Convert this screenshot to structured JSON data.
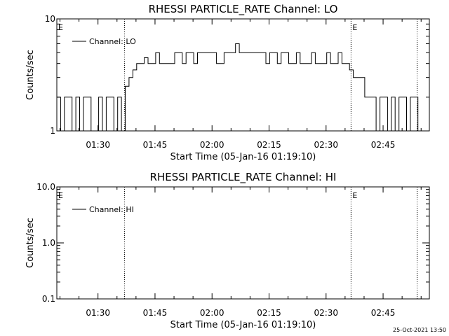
{
  "footer": {
    "timestamp": "25-Oct-2021 13:50"
  },
  "chart_data": [
    {
      "type": "line",
      "title": "RHESSI PARTICLE_RATE Channel: LO",
      "xlabel": "Start Time (05-Jan-16 01:19:10)",
      "ylabel": "Counts/sec",
      "y_scale": "log",
      "ylim": [
        1,
        10
      ],
      "y_tick_values": [
        1,
        10
      ],
      "y_tick_labels": [
        "1",
        "10"
      ],
      "xlim_minutes_after_start": [
        0,
        98
      ],
      "x_tick_labels": [
        "01:30",
        "01:45",
        "02:00",
        "02:15",
        "02:30",
        "02:45"
      ],
      "x_tick_minutes_after_start": [
        10.83,
        25.83,
        40.83,
        55.83,
        70.83,
        85.83
      ],
      "legend": {
        "entries": [
          "Channel: LO"
        ],
        "placement": "top-left"
      },
      "event_markers": [
        {
          "label": "E",
          "minutes_after_start": 0
        },
        {
          "label": "",
          "minutes_after_start": 17.8
        },
        {
          "label": "E",
          "minutes_after_start": 77.4
        },
        {
          "label": "",
          "minutes_after_start": 94.8
        }
      ],
      "series": [
        {
          "name": "Channel: LO",
          "x": [
            0,
            1,
            2,
            3,
            4,
            5,
            6,
            7,
            8,
            9,
            10,
            11,
            12,
            13,
            14,
            15,
            16,
            17,
            18,
            19,
            20,
            21,
            22,
            23,
            24,
            25,
            26,
            27,
            28,
            29,
            30,
            31,
            32,
            33,
            34,
            35,
            36,
            37,
            38,
            39,
            40,
            41,
            42,
            43,
            44,
            45,
            46,
            47,
            48,
            49,
            50,
            51,
            52,
            53,
            54,
            55,
            56,
            57,
            58,
            59,
            60,
            61,
            62,
            63,
            64,
            65,
            66,
            67,
            68,
            69,
            70,
            71,
            72,
            73,
            74,
            75,
            76,
            77,
            78,
            79,
            80,
            81,
            82,
            83,
            84,
            85,
            86,
            87,
            88,
            89,
            90,
            91,
            92,
            93,
            94,
            95
          ],
          "values": [
            2,
            1,
            2,
            2,
            1,
            2,
            1,
            2,
            2,
            1,
            1,
            2,
            1,
            2,
            2,
            1,
            2,
            1,
            2.5,
            3,
            3.5,
            4,
            4,
            4.5,
            4,
            4,
            5,
            4,
            4,
            4,
            4,
            5,
            5,
            4,
            5,
            5,
            4,
            5,
            5,
            5,
            5,
            5,
            4,
            4,
            5,
            5,
            5,
            6,
            5,
            5,
            5,
            5,
            5,
            5,
            5,
            4,
            5,
            5,
            4,
            5,
            5,
            4,
            4,
            5,
            4,
            4,
            4,
            5,
            4,
            4,
            4,
            5,
            4,
            4,
            5,
            4,
            4,
            3.5,
            3,
            3,
            3,
            2,
            2,
            2,
            1,
            2,
            2,
            1,
            2,
            1,
            2,
            2,
            1,
            2,
            2,
            1
          ]
        }
      ]
    },
    {
      "type": "line",
      "title": "RHESSI PARTICLE_RATE Channel: HI",
      "xlabel": "Start Time (05-Jan-16 01:19:10)",
      "ylabel": "Counts/sec",
      "y_scale": "log",
      "ylim": [
        0.1,
        10
      ],
      "y_tick_values": [
        0.1,
        1,
        10
      ],
      "y_tick_labels": [
        "0.1",
        "1.0",
        "10.0"
      ],
      "xlim_minutes_after_start": [
        0,
        98
      ],
      "x_tick_labels": [
        "01:30",
        "01:45",
        "02:00",
        "02:15",
        "02:30",
        "02:45"
      ],
      "x_tick_minutes_after_start": [
        10.83,
        25.83,
        40.83,
        55.83,
        70.83,
        85.83
      ],
      "legend": {
        "entries": [
          "Channel: HI"
        ],
        "placement": "top-left"
      },
      "event_markers": [
        {
          "label": "E",
          "minutes_after_start": 0
        },
        {
          "label": "",
          "minutes_after_start": 17.8
        },
        {
          "label": "E",
          "minutes_after_start": 77.4
        },
        {
          "label": "",
          "minutes_after_start": 94.8
        }
      ],
      "series": [
        {
          "name": "Channel: HI",
          "x": [],
          "values": []
        }
      ]
    }
  ]
}
